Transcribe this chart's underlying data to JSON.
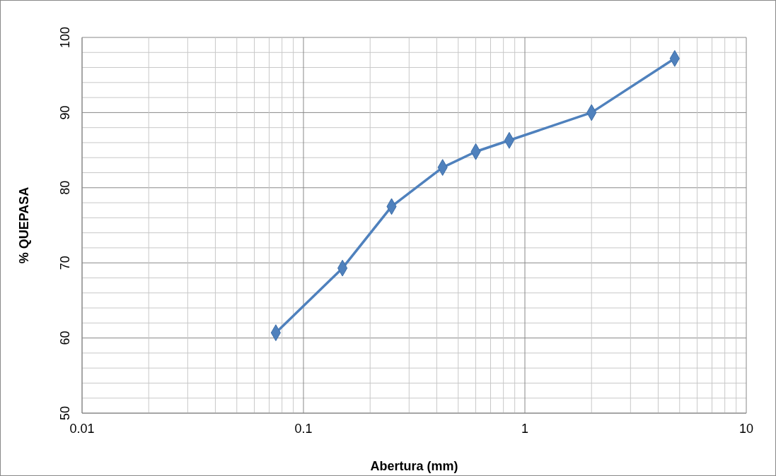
{
  "chart_data": {
    "type": "line",
    "xlabel": "Abertura (mm)",
    "ylabel": "% QUEPASA",
    "log": "x",
    "grid": true,
    "marker": "diamond",
    "line_style": "solid",
    "x": [
      0.075,
      0.15,
      0.25,
      0.425,
      0.6,
      0.85,
      2,
      4.75
    ],
    "series": [
      {
        "color": "#4f81bd",
        "values": [
          60.7,
          69.3,
          77.5,
          82.7,
          84.8,
          86.3,
          90.0,
          97.2
        ]
      }
    ],
    "xlim": [
      0.01,
      10
    ],
    "xticks": [
      0.01,
      {
        "value": 0.02,
        "label": null
      },
      {
        "value": 0.03,
        "label": null
      },
      {
        "value": 0.04,
        "label": null
      },
      {
        "value": 0.05,
        "label": null
      },
      {
        "value": 0.06,
        "label": null
      },
      {
        "value": 0.07,
        "label": null
      },
      {
        "value": 0.08,
        "label": null
      },
      {
        "value": 0.09,
        "label": null
      },
      0.1,
      {
        "value": 0.2,
        "label": null
      },
      {
        "value": 0.3,
        "label": null
      },
      {
        "value": 0.4,
        "label": null
      },
      {
        "value": 0.5,
        "label": null
      },
      {
        "value": 0.6,
        "label": null
      },
      {
        "value": 0.7,
        "label": null
      },
      {
        "value": 0.8,
        "label": null
      },
      {
        "value": 0.9,
        "label": null
      },
      1,
      {
        "value": 2,
        "label": null
      },
      {
        "value": 3,
        "label": null
      },
      {
        "value": 4,
        "label": null
      },
      {
        "value": 5,
        "label": null
      },
      {
        "value": 6,
        "label": null
      },
      {
        "value": 7,
        "label": null
      },
      {
        "value": 8,
        "label": null
      },
      {
        "value": 9,
        "label": null
      },
      10
    ],
    "ylim": [
      50,
      100
    ],
    "yticks": [
      50,
      {
        "value": 52,
        "label": null
      },
      {
        "value": 54,
        "label": null
      },
      {
        "value": 56,
        "label": null
      },
      {
        "value": 58,
        "label": null
      },
      60,
      {
        "value": 62,
        "label": null
      },
      {
        "value": 64,
        "label": null
      },
      {
        "value": 66,
        "label": null
      },
      {
        "value": 68,
        "label": null
      },
      70,
      {
        "value": 72,
        "label": null
      },
      {
        "value": 74,
        "label": null
      },
      {
        "value": 76,
        "label": null
      },
      {
        "value": 78,
        "label": null
      },
      80,
      {
        "value": 82,
        "label": null
      },
      {
        "value": 84,
        "label": null
      },
      {
        "value": 86,
        "label": null
      },
      {
        "value": 88,
        "label": null
      },
      90,
      {
        "value": 92,
        "label": null
      },
      {
        "value": 94,
        "label": null
      },
      {
        "value": 96,
        "label": null
      },
      {
        "value": 98,
        "label": null
      },
      100
    ]
  }
}
